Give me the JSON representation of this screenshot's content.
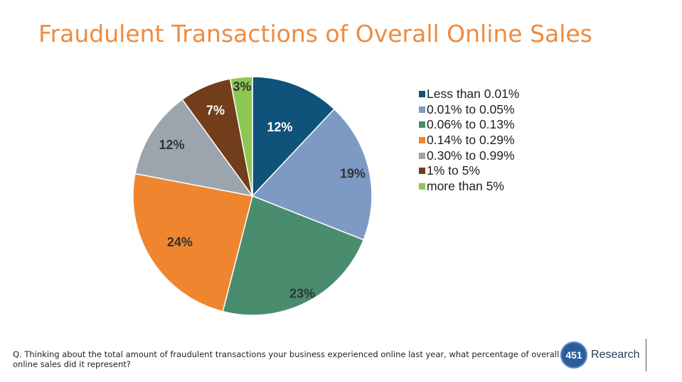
{
  "slide": {
    "title": "Fraudulent Transactions of Overall Online Sales",
    "question": "Q. Thinking about the total amount of fraudulent transactions your business experienced online last year, what percentage of overall online sales did it represent?"
  },
  "logo": {
    "badge": "451",
    "name": "Research",
    "colors": {
      "badge": "#2b5c9c",
      "text": "#2a3b5c"
    }
  },
  "colors": {
    "title": "#ef8b3f"
  },
  "chart_data": {
    "type": "pie",
    "start_angle_deg": 0,
    "direction": "clockwise",
    "legend_position": "right",
    "slices": [
      {
        "label": "Less than 0.01%",
        "value": 12,
        "display": "12%",
        "color": "#0f527a"
      },
      {
        "label": "0.01% to 0.05%",
        "value": 19,
        "display": "19%",
        "color": "#7c9ac4"
      },
      {
        "label": "0.06% to 0.13%",
        "value": 23,
        "display": "23%",
        "color": "#4a8c6e"
      },
      {
        "label": "0.14% to 0.29%",
        "value": 24,
        "display": "24%",
        "color": "#f0852f"
      },
      {
        "label": "0.30% to 0.99%",
        "value": 12,
        "display": "12%",
        "color": "#9ca4ad"
      },
      {
        "label": "1% to 5%",
        "value": 7,
        "display": "7%",
        "color": "#713d1b"
      },
      {
        "label": "more than 5%",
        "value": 3,
        "display": "3%",
        "color": "#8dc752"
      }
    ]
  }
}
